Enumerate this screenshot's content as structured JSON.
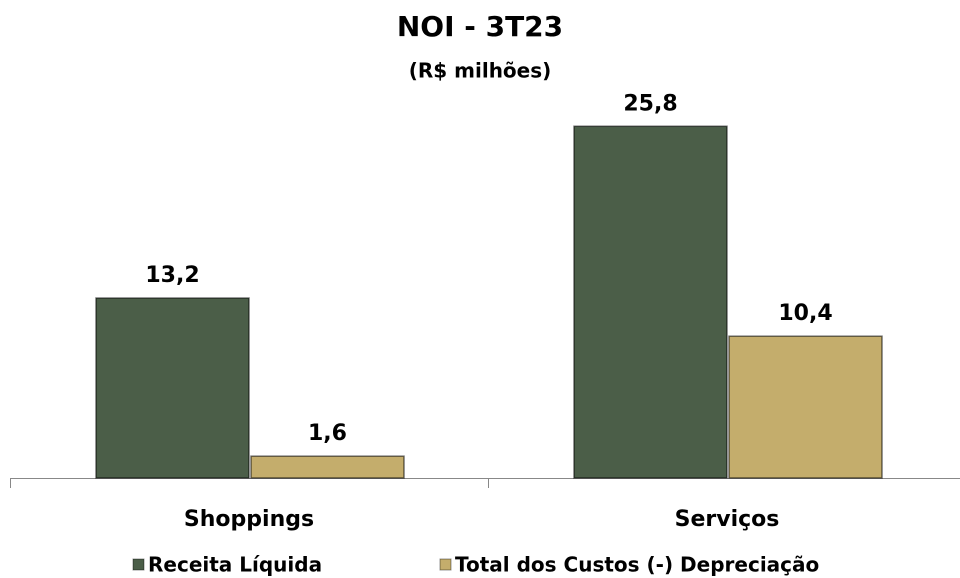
{
  "chart_data": {
    "type": "bar",
    "title": "NOI - 3T23",
    "subtitle": "(R$ milhões)",
    "categories": [
      "Shoppings",
      "Serviços"
    ],
    "series": [
      {
        "name": "Receita Líquida",
        "color": "#4b5e48",
        "values": [
          13.2,
          25.8
        ],
        "value_labels": [
          "13,2",
          "25,8"
        ]
      },
      {
        "name": "Total dos Custos (-) Depreciação",
        "color": "#c4ad6c",
        "values": [
          1.6,
          10.4
        ],
        "value_labels": [
          "1,6",
          "10,4"
        ]
      }
    ],
    "ylim": [
      0,
      30
    ],
    "legend": "bottom"
  }
}
